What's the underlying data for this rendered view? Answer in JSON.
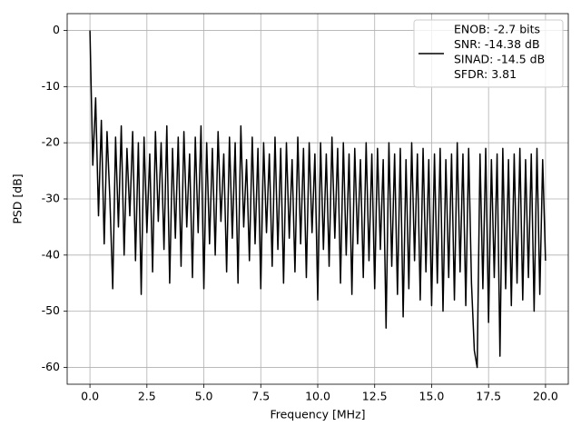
{
  "chart_data": {
    "type": "line",
    "xlabel": "Frequency [MHz]",
    "ylabel": "PSD [dB]",
    "xlim": [
      -1,
      21
    ],
    "ylim": [
      -63,
      3
    ],
    "xticks": [
      {
        "value": 0,
        "label": "0.0"
      },
      2.5,
      {
        "value": 5,
        "label": "5.0"
      },
      7.5,
      {
        "value": 10,
        "label": "10.0"
      },
      12.5,
      {
        "value": 15,
        "label": "15.0"
      },
      17.5,
      {
        "value": 20,
        "label": "20.0"
      }
    ],
    "yticks": [
      0,
      -10,
      -20,
      -30,
      -40,
      -50,
      -60
    ],
    "grid": true,
    "legend": "upper right",
    "x": [
      0,
      0.125,
      0.25,
      0.375,
      0.5,
      0.625,
      0.75,
      0.875,
      1,
      1.125,
      1.25,
      1.375,
      1.5,
      1.625,
      1.75,
      1.875,
      2,
      2.125,
      2.25,
      2.375,
      2.5,
      2.625,
      2.75,
      2.875,
      3,
      3.125,
      3.25,
      3.375,
      3.5,
      3.625,
      3.75,
      3.875,
      4,
      4.125,
      4.25,
      4.375,
      4.5,
      4.625,
      4.75,
      4.875,
      5,
      5.125,
      5.25,
      5.375,
      5.5,
      5.625,
      5.75,
      5.875,
      6,
      6.125,
      6.25,
      6.375,
      6.5,
      6.625,
      6.75,
      6.875,
      7,
      7.125,
      7.25,
      7.375,
      7.5,
      7.625,
      7.75,
      7.875,
      8,
      8.125,
      8.25,
      8.375,
      8.5,
      8.625,
      8.75,
      8.875,
      9,
      9.125,
      9.25,
      9.375,
      9.5,
      9.625,
      9.75,
      9.875,
      10,
      10.125,
      10.25,
      10.375,
      10.5,
      10.625,
      10.75,
      10.875,
      11,
      11.125,
      11.25,
      11.375,
      11.5,
      11.625,
      11.75,
      11.875,
      12,
      12.125,
      12.25,
      12.375,
      12.5,
      12.625,
      12.75,
      12.875,
      13,
      13.125,
      13.25,
      13.375,
      13.5,
      13.625,
      13.75,
      13.875,
      14,
      14.125,
      14.25,
      14.375,
      14.5,
      14.625,
      14.75,
      14.875,
      15,
      15.125,
      15.25,
      15.375,
      15.5,
      15.625,
      15.75,
      15.875,
      16,
      16.125,
      16.25,
      16.375,
      16.5,
      16.625,
      16.75,
      16.875,
      17,
      17.125,
      17.25,
      17.375,
      17.5,
      17.625,
      17.75,
      17.875,
      18,
      18.125,
      18.25,
      18.375,
      18.5,
      18.625,
      18.75,
      18.875,
      19,
      19.125,
      19.25,
      19.375,
      19.5,
      19.625,
      19.75,
      19.875,
      20
    ],
    "series": [
      {
        "name": [
          "ENOB: -2.7 bits",
          "SNR: -14.38 dB",
          "SINAD: -14.5 dB",
          "SFDR: 3.81"
        ],
        "color": "#000000",
        "values": [
          0,
          -24,
          -12,
          -33,
          -16,
          -38,
          -18,
          -30,
          -46,
          -19,
          -35,
          -17,
          -40,
          -21,
          -33,
          -18,
          -41,
          -20,
          -47,
          -19,
          -36,
          -22,
          -43,
          -18,
          -34,
          -20,
          -39,
          -17,
          -45,
          -21,
          -37,
          -19,
          -42,
          -18,
          -35,
          -22,
          -44,
          -19,
          -36,
          -17,
          -46,
          -20,
          -38,
          -21,
          -40,
          -18,
          -34,
          -22,
          -43,
          -19,
          -37,
          -20,
          -45,
          -17,
          -35,
          -23,
          -41,
          -19,
          -38,
          -21,
          -46,
          -20,
          -36,
          -22,
          -42,
          -19,
          -39,
          -21,
          -45,
          -20,
          -37,
          -23,
          -43,
          -19,
          -38,
          -21,
          -44,
          -20,
          -36,
          -22,
          -48,
          -20,
          -39,
          -22,
          -42,
          -19,
          -37,
          -21,
          -45,
          -20,
          -40,
          -22,
          -47,
          -21,
          -38,
          -23,
          -44,
          -20,
          -41,
          -22,
          -46,
          -21,
          -39,
          -23,
          -53,
          -20,
          -42,
          -22,
          -47,
          -21,
          -51,
          -23,
          -46,
          -20,
          -41,
          -22,
          -48,
          -21,
          -43,
          -23,
          -49,
          -22,
          -45,
          -21,
          -50,
          -23,
          -44,
          -22,
          -48,
          -20,
          -43,
          -22,
          -49,
          -21,
          -45,
          -57,
          -60,
          -22,
          -46,
          -21,
          -52,
          -23,
          -44,
          -22,
          -58,
          -21,
          -46,
          -23,
          -49,
          -22,
          -45,
          -21,
          -48,
          -23,
          -44,
          -22,
          -50,
          -21,
          -47,
          -23,
          -41
        ]
      }
    ]
  }
}
